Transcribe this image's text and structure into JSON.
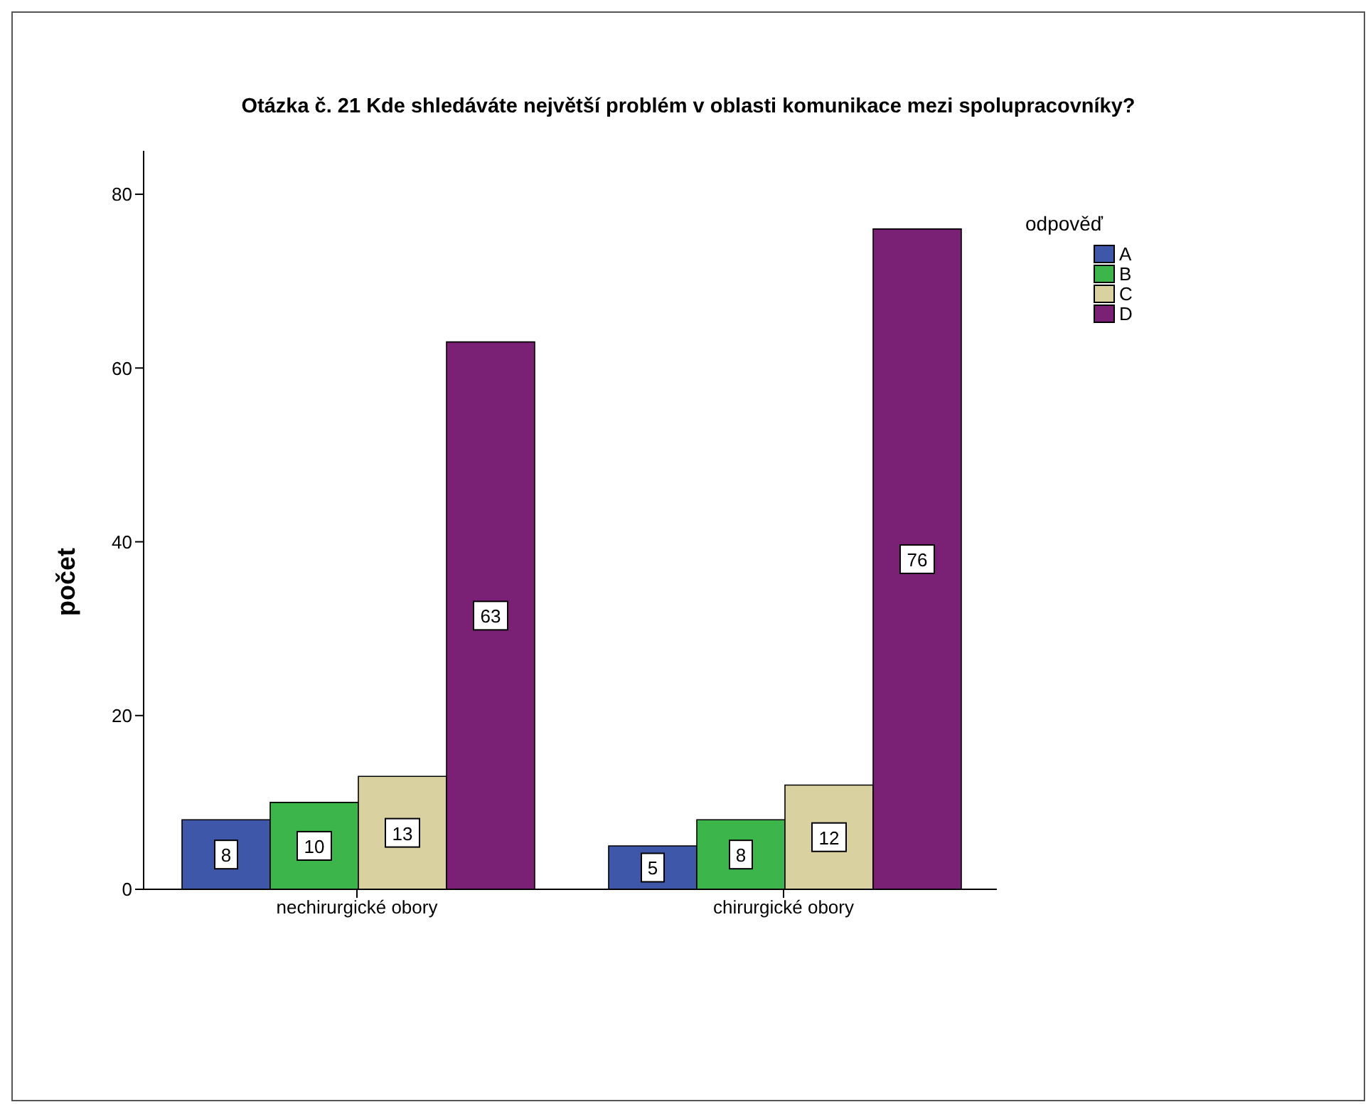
{
  "chart_data": {
    "type": "bar",
    "title": "Otázka č. 21 Kde shledáváte největší problém v oblasti komunikace mezi spolupracovníky?",
    "ylabel": "počet",
    "legend_title": "odpověď",
    "categories": [
      "nechirurgické obory",
      "chirurgické obory"
    ],
    "series": [
      {
        "name": "A",
        "color": "#3e57a8",
        "values": [
          8,
          5
        ]
      },
      {
        "name": "B",
        "color": "#3cb54a",
        "values": [
          10,
          8
        ]
      },
      {
        "name": "C",
        "color": "#d9d1a0",
        "values": [
          13,
          12
        ]
      },
      {
        "name": "D",
        "color": "#7b2175",
        "values": [
          63,
          76
        ]
      }
    ],
    "ylim": [
      0,
      85
    ],
    "yticks": [
      0,
      20,
      40,
      60,
      80
    ],
    "grid": false,
    "legend": "top right",
    "data_labels": true
  }
}
